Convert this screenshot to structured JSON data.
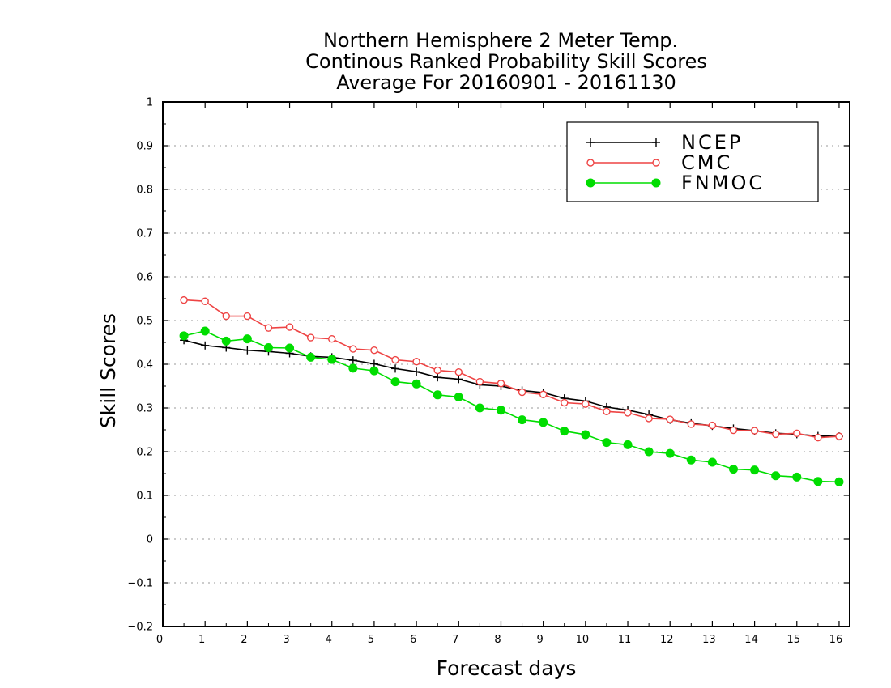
{
  "chart_data": {
    "type": "line",
    "title": [
      "Northern Hemisphere 2 Meter Temp.",
      "Continous Ranked Probability Skill Scores",
      "Average For 20160901 - 20161130"
    ],
    "xlabel": "Forecast days",
    "ylabel": "Skill Scores",
    "xlim": [
      0,
      16.25
    ],
    "ylim": [
      -0.2,
      1
    ],
    "xticks": [
      "0",
      "1",
      "2",
      "3",
      "4",
      "5",
      "6",
      "7",
      "8",
      "9",
      "10",
      "11",
      "12",
      "13",
      "14",
      "15",
      "16"
    ],
    "yticks": [
      "−0.2",
      "−0.1",
      "0",
      "0.1",
      "0.2",
      "0.3",
      "0.4",
      "0.5",
      "0.6",
      "0.7",
      "0.8",
      "0.9",
      "1"
    ],
    "grid": true,
    "legend_position": "top-right",
    "x": [
      0.5,
      1,
      1.5,
      2,
      2.5,
      3,
      3.5,
      4,
      4.5,
      5,
      5.5,
      6,
      6.5,
      7,
      7.5,
      8,
      8.5,
      9,
      9.5,
      10,
      10.5,
      11,
      11.5,
      12,
      12.5,
      13,
      13.5,
      14,
      14.5,
      15,
      15.5,
      16
    ],
    "series": [
      {
        "name": "NCEP",
        "color": "#000000",
        "marker": "plus",
        "values": [
          0.455,
          0.443,
          0.438,
          0.432,
          0.429,
          0.425,
          0.418,
          0.416,
          0.409,
          0.401,
          0.39,
          0.383,
          0.37,
          0.366,
          0.353,
          0.35,
          0.34,
          0.335,
          0.322,
          0.316,
          0.302,
          0.295,
          0.285,
          0.273,
          0.265,
          0.259,
          0.253,
          0.248,
          0.242,
          0.24,
          0.236,
          0.235
        ]
      },
      {
        "name": "CMC",
        "color": "#ee4444",
        "marker": "open-circle",
        "values": [
          0.547,
          0.544,
          0.51,
          0.51,
          0.483,
          0.485,
          0.461,
          0.458,
          0.435,
          0.432,
          0.41,
          0.406,
          0.386,
          0.382,
          0.36,
          0.356,
          0.336,
          0.331,
          0.312,
          0.309,
          0.292,
          0.289,
          0.276,
          0.274,
          0.263,
          0.26,
          0.249,
          0.248,
          0.24,
          0.242,
          0.232,
          0.235
        ]
      },
      {
        "name": "FNMOC",
        "color": "#00dd00",
        "marker": "filled-circle",
        "values": [
          0.465,
          0.476,
          0.453,
          0.458,
          0.438,
          0.437,
          0.416,
          0.411,
          0.391,
          0.385,
          0.36,
          0.355,
          0.33,
          0.325,
          0.3,
          0.295,
          0.273,
          0.267,
          0.247,
          0.239,
          0.221,
          0.216,
          0.2,
          0.196,
          0.181,
          0.176,
          0.16,
          0.158,
          0.145,
          0.142,
          0.132,
          0.131
        ]
      }
    ]
  }
}
